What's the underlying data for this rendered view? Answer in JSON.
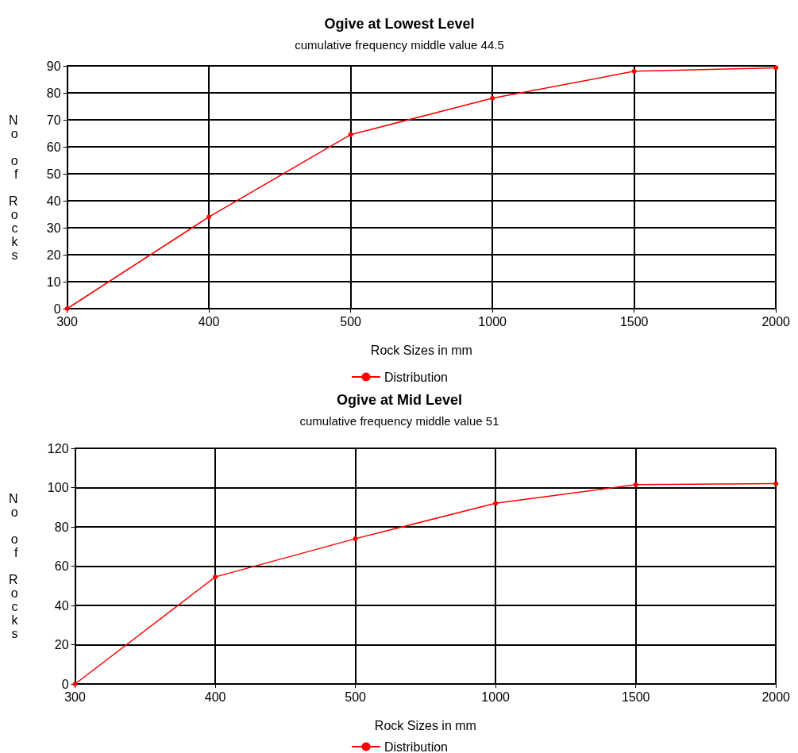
{
  "chart_data": [
    {
      "type": "line",
      "title": "Ogive at Lowest Level",
      "subtitle": "cumulative frequency middle value 44.5",
      "xlabel": "Rock Sizes in mm",
      "ylabel": "No of Rocks",
      "categories": [
        "300",
        "400",
        "500",
        "1000",
        "1500",
        "2000"
      ],
      "series": [
        {
          "name": "Distribution",
          "color": "#ff0000",
          "values": [
            0,
            34,
            64.5,
            78,
            88,
            89.3
          ]
        }
      ],
      "ylim": [
        0,
        90
      ],
      "yticks": [
        0,
        10,
        20,
        30,
        40,
        50,
        60,
        70,
        80,
        90
      ],
      "grid": true,
      "legend": "bottom",
      "marker": "circle",
      "line_style": "solid"
    },
    {
      "type": "line",
      "title": "Ogive at Mid Level",
      "subtitle": "cumulative frequency middle value 51",
      "xlabel": "Rock Sizes in mm",
      "ylabel": "No of Rocks",
      "categories": [
        "300",
        "400",
        "500",
        "1000",
        "1500",
        "2000"
      ],
      "series": [
        {
          "name": "Distribution",
          "color": "#ff0000",
          "values": [
            0,
            54.5,
            74,
            92,
            101.5,
            102
          ]
        }
      ],
      "ylim": [
        0,
        120
      ],
      "yticks": [
        0,
        20,
        40,
        60,
        80,
        100,
        120
      ],
      "grid": true,
      "legend": "bottom",
      "marker": "circle",
      "line_style": "solid"
    }
  ]
}
